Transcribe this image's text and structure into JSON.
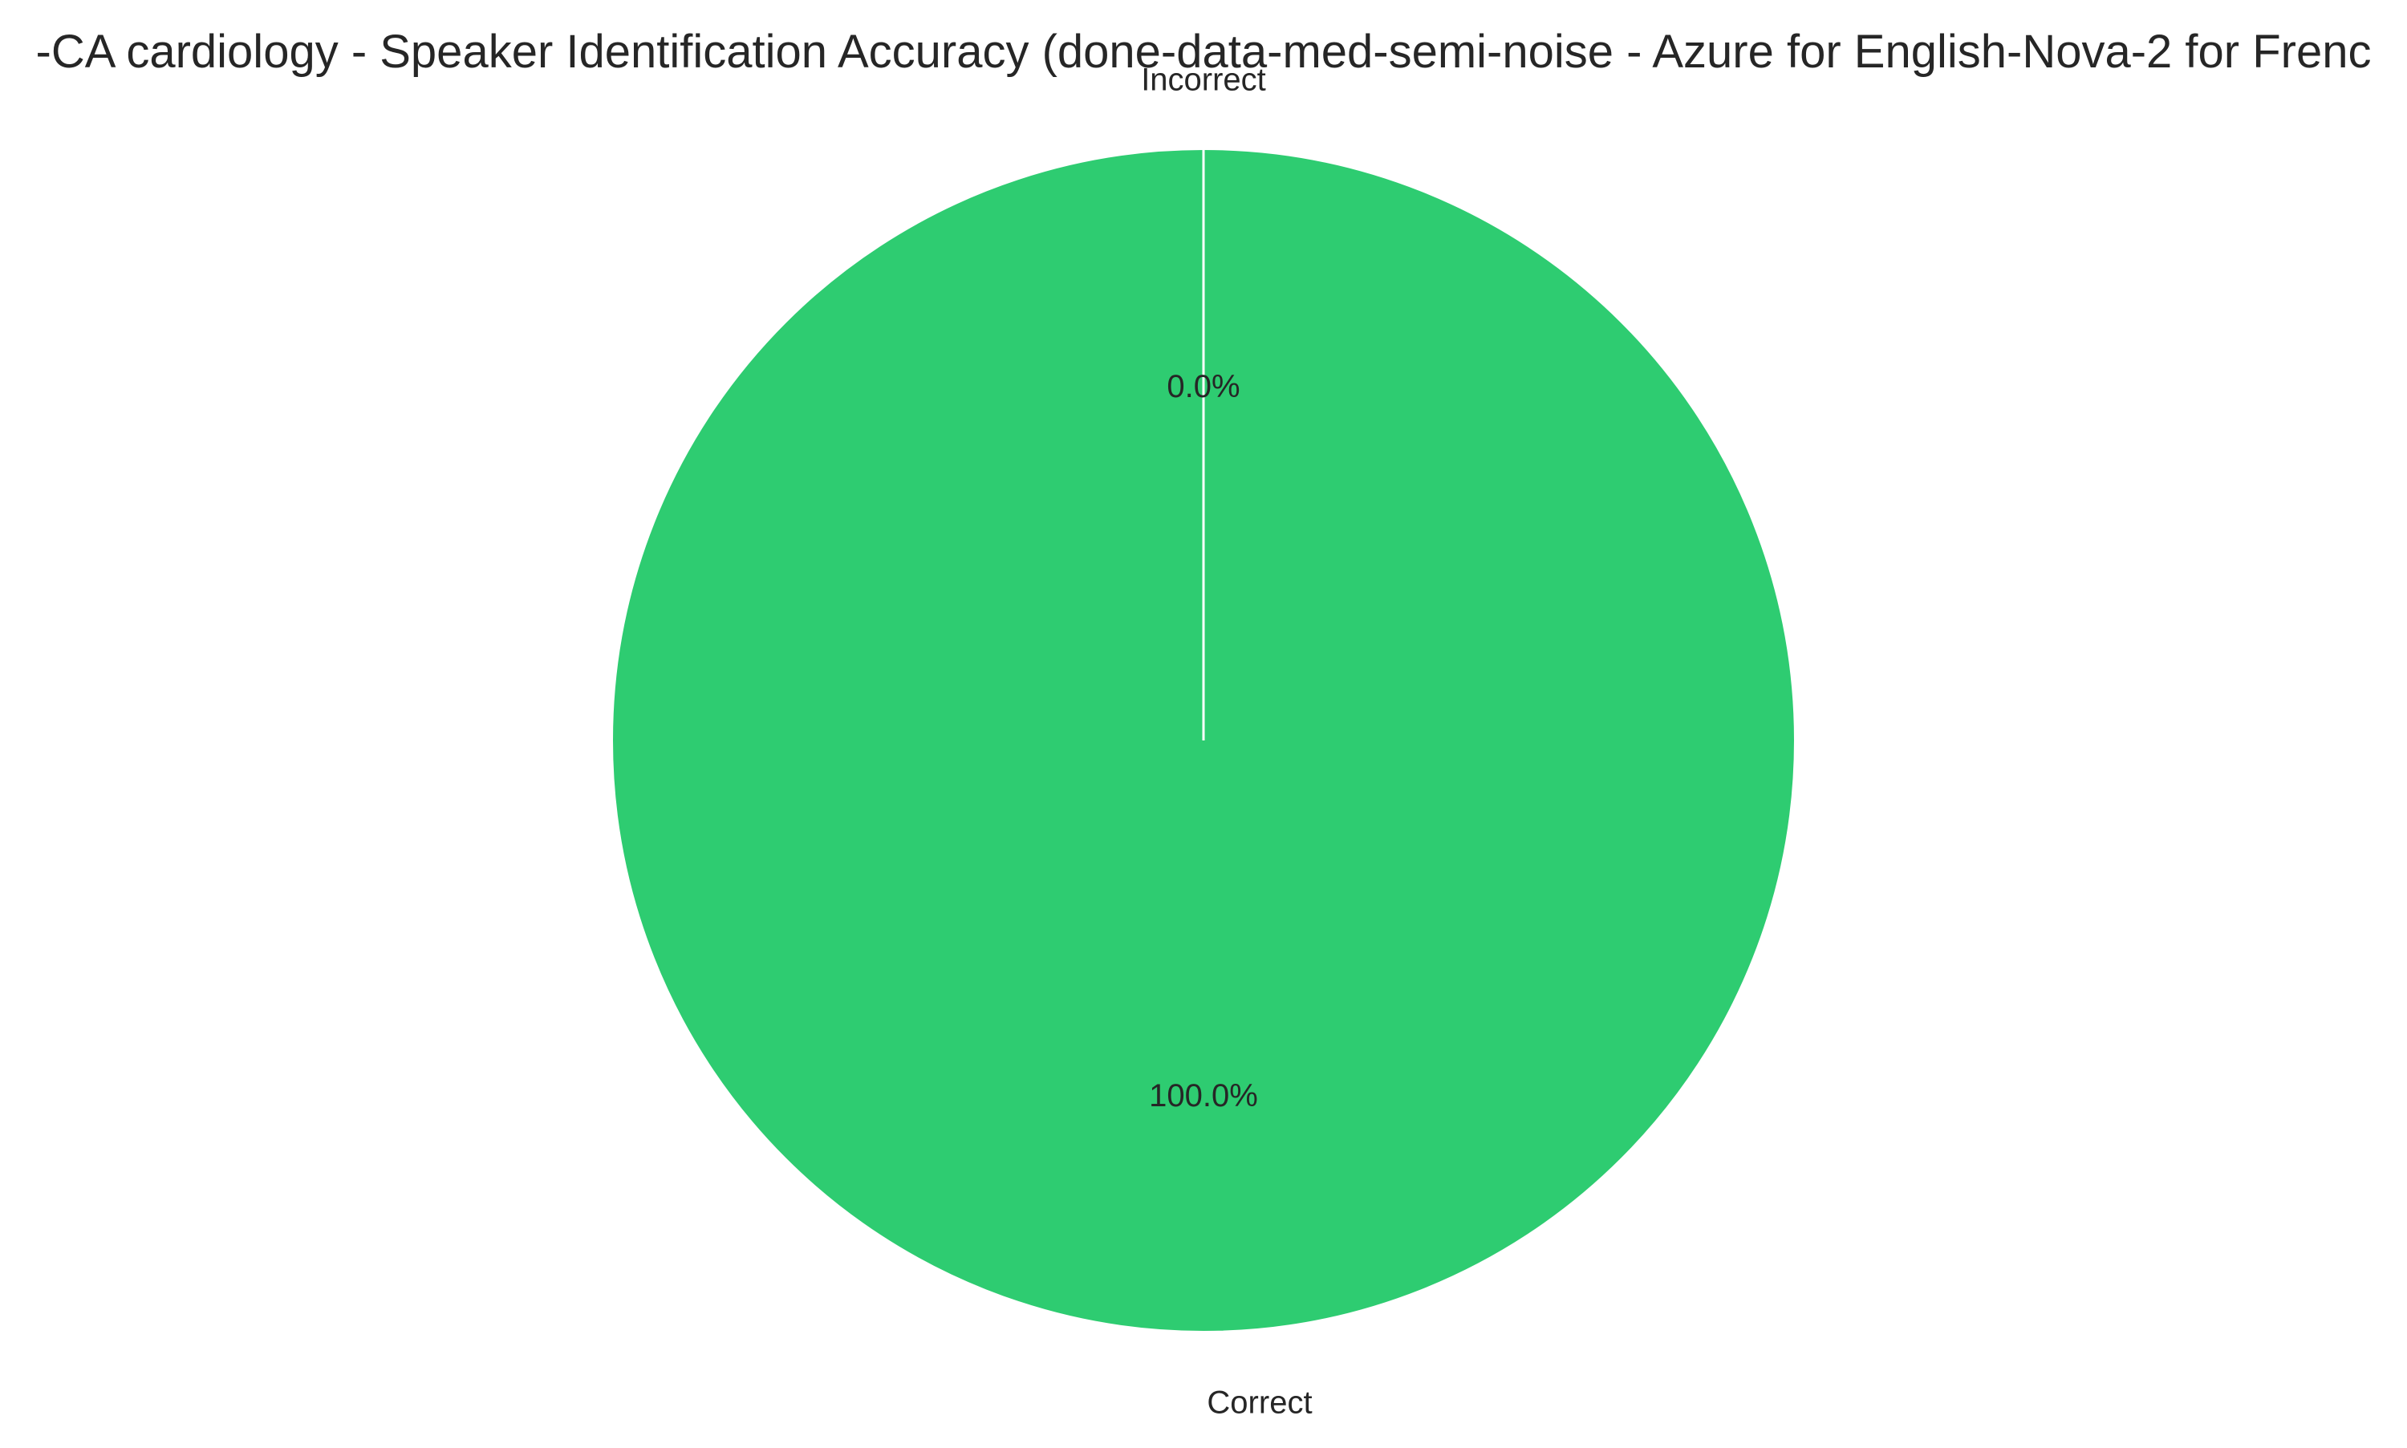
{
  "chart_data": {
    "type": "pie",
    "title": "-CA cardiology - Speaker Identification Accuracy (done-data-med-semi-noise - Azure for English-Nova-2 for Frenc",
    "slices": [
      {
        "label": "Correct",
        "value": 100.0,
        "pct_label": "100.0%",
        "color": "#2ecc71"
      },
      {
        "label": "Incorrect",
        "value": 0.0,
        "pct_label": "0.0%",
        "color": "#e74c3c"
      }
    ],
    "start_angle": "12 o'clock",
    "wedge_edge_color": "#ffffff"
  }
}
